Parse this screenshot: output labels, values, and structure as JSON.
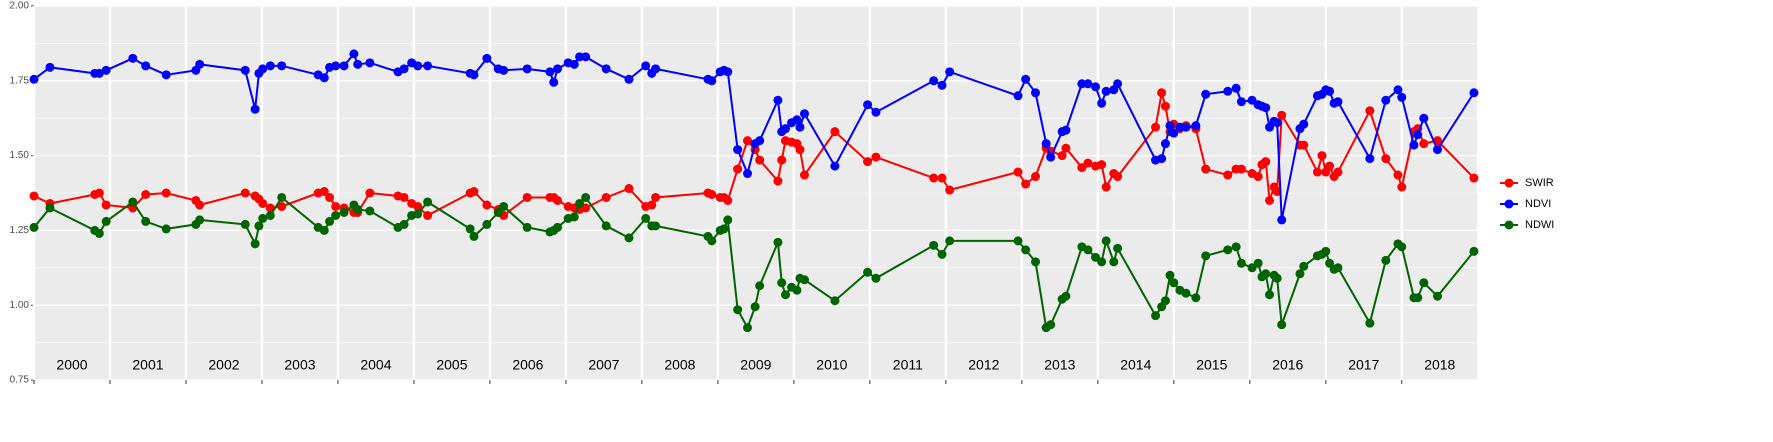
{
  "chart_data": {
    "type": "line",
    "x": [
      2000.0,
      2000.21,
      2000.8,
      2000.86,
      2000.95,
      2001.3,
      2001.47,
      2001.74,
      2002.13,
      2002.18,
      2002.78,
      2002.91,
      2002.96,
      2003.01,
      2003.11,
      2003.26,
      2003.74,
      2003.82,
      2003.89,
      2003.97,
      2004.08,
      2004.21,
      2004.26,
      2004.42,
      2004.79,
      2004.87,
      2004.97,
      2005.05,
      2005.18,
      2005.74,
      2005.79,
      2005.96,
      2006.11,
      2006.18,
      2006.49,
      2006.79,
      2006.84,
      2006.89,
      2007.03,
      2007.11,
      2007.18,
      2007.26,
      2007.53,
      2007.83,
      2008.05,
      2008.13,
      2008.18,
      2008.87,
      2008.92,
      2009.03,
      2009.08,
      2009.13,
      2009.26,
      2009.39,
      2009.49,
      2009.55,
      2009.79,
      2009.84,
      2009.89,
      2009.97,
      2010.04,
      2010.08,
      2010.14,
      2010.54,
      2010.97,
      2011.08,
      2011.84,
      2011.95,
      2012.05,
      2012.95,
      2013.05,
      2013.18,
      2013.32,
      2013.38,
      2013.53,
      2013.58,
      2013.79,
      2013.87,
      2013.97,
      2014.05,
      2014.11,
      2014.21,
      2014.26,
      2014.76,
      2014.84,
      2014.89,
      2014.95,
      2015.0,
      2015.08,
      2015.16,
      2015.29,
      2015.42,
      2015.71,
      2015.82,
      2015.89,
      2016.03,
      2016.11,
      2016.16,
      2016.21,
      2016.26,
      2016.32,
      2016.36,
      2016.42,
      2016.66,
      2016.71,
      2016.89,
      2016.95,
      2017.0,
      2017.05,
      2017.11,
      2017.16,
      2017.58,
      2017.79,
      2017.95,
      2018.0,
      2018.16,
      2018.21,
      2018.29,
      2018.47,
      2018.95
    ],
    "series": [
      {
        "name": "SWIR",
        "color": "#ff0000",
        "values": [
          1.365,
          1.34,
          1.37,
          1.375,
          1.335,
          1.325,
          1.37,
          1.375,
          1.35,
          1.335,
          1.375,
          1.365,
          1.355,
          1.34,
          1.325,
          1.33,
          1.375,
          1.38,
          1.36,
          1.33,
          1.325,
          1.31,
          1.31,
          1.375,
          1.365,
          1.36,
          1.34,
          1.33,
          1.3,
          1.375,
          1.38,
          1.335,
          1.32,
          1.3,
          1.36,
          1.36,
          1.36,
          1.35,
          1.33,
          1.325,
          1.32,
          1.325,
          1.36,
          1.39,
          1.33,
          1.335,
          1.36,
          1.375,
          1.37,
          1.36,
          1.36,
          1.35,
          1.455,
          1.55,
          1.52,
          1.485,
          1.415,
          1.485,
          1.55,
          1.545,
          1.54,
          1.52,
          1.435,
          1.58,
          1.48,
          1.495,
          1.425,
          1.425,
          1.385,
          1.445,
          1.405,
          1.43,
          1.525,
          1.515,
          1.5,
          1.525,
          1.46,
          1.475,
          1.465,
          1.47,
          1.395,
          1.44,
          1.43,
          1.595,
          1.71,
          1.665,
          1.58,
          1.605,
          1.59,
          1.6,
          1.59,
          1.455,
          1.435,
          1.455,
          1.455,
          1.44,
          1.43,
          1.47,
          1.48,
          1.35,
          1.395,
          1.38,
          1.635,
          1.535,
          1.535,
          1.445,
          1.5,
          1.445,
          1.465,
          1.43,
          1.445,
          1.65,
          1.49,
          1.435,
          1.395,
          1.58,
          1.59,
          1.54,
          1.55,
          1.425
        ]
      },
      {
        "name": "NDVI",
        "color": "#0000ff",
        "values": [
          1.755,
          1.795,
          1.775,
          1.775,
          1.785,
          1.825,
          1.8,
          1.77,
          1.785,
          1.805,
          1.785,
          1.655,
          1.775,
          1.79,
          1.8,
          1.8,
          1.77,
          1.76,
          1.795,
          1.8,
          1.8,
          1.84,
          1.805,
          1.81,
          1.78,
          1.79,
          1.81,
          1.8,
          1.8,
          1.775,
          1.77,
          1.825,
          1.79,
          1.785,
          1.79,
          1.78,
          1.745,
          1.79,
          1.81,
          1.805,
          1.83,
          1.83,
          1.79,
          1.755,
          1.8,
          1.775,
          1.79,
          1.755,
          1.75,
          1.78,
          1.785,
          1.78,
          1.52,
          1.44,
          1.54,
          1.55,
          1.685,
          1.58,
          1.59,
          1.61,
          1.62,
          1.595,
          1.64,
          1.465,
          1.67,
          1.645,
          1.75,
          1.735,
          1.78,
          1.7,
          1.755,
          1.71,
          1.54,
          1.495,
          1.58,
          1.585,
          1.74,
          1.74,
          1.73,
          1.675,
          1.715,
          1.72,
          1.74,
          1.485,
          1.49,
          1.54,
          1.6,
          1.575,
          1.595,
          1.595,
          1.6,
          1.705,
          1.715,
          1.725,
          1.68,
          1.685,
          1.67,
          1.665,
          1.66,
          1.595,
          1.615,
          1.61,
          1.285,
          1.59,
          1.605,
          1.7,
          1.705,
          1.72,
          1.715,
          1.675,
          1.68,
          1.49,
          1.685,
          1.72,
          1.695,
          1.535,
          1.57,
          1.625,
          1.52,
          1.71
        ]
      },
      {
        "name": "NDWI",
        "color": "#006400",
        "values": [
          1.26,
          1.325,
          1.25,
          1.24,
          1.28,
          1.345,
          1.28,
          1.255,
          1.27,
          1.285,
          1.27,
          1.205,
          1.265,
          1.29,
          1.3,
          1.36,
          1.26,
          1.25,
          1.28,
          1.3,
          1.31,
          1.335,
          1.32,
          1.315,
          1.26,
          1.27,
          1.3,
          1.305,
          1.345,
          1.255,
          1.23,
          1.27,
          1.31,
          1.33,
          1.26,
          1.245,
          1.25,
          1.26,
          1.29,
          1.295,
          1.34,
          1.36,
          1.265,
          1.225,
          1.29,
          1.265,
          1.265,
          1.23,
          1.215,
          1.25,
          1.255,
          1.285,
          0.985,
          0.925,
          0.995,
          1.065,
          1.21,
          1.075,
          1.035,
          1.06,
          1.05,
          1.09,
          1.085,
          1.015,
          1.11,
          1.09,
          1.2,
          1.17,
          1.215,
          1.215,
          1.185,
          1.145,
          0.925,
          0.935,
          1.02,
          1.03,
          1.195,
          1.185,
          1.16,
          1.145,
          1.215,
          1.145,
          1.19,
          0.965,
          0.995,
          1.015,
          1.1,
          1.075,
          1.05,
          1.04,
          1.025,
          1.165,
          1.185,
          1.195,
          1.14,
          1.125,
          1.14,
          1.095,
          1.105,
          1.035,
          1.1,
          1.09,
          0.935,
          1.105,
          1.13,
          1.165,
          1.17,
          1.18,
          1.14,
          1.12,
          1.125,
          0.94,
          1.15,
          1.205,
          1.195,
          1.025,
          1.025,
          1.075,
          1.03,
          1.18
        ]
      }
    ],
    "xlim": [
      2000,
      2018.99
    ],
    "xticks": [
      2000,
      2001,
      2002,
      2003,
      2004,
      2005,
      2006,
      2007,
      2008,
      2009,
      2010,
      2011,
      2012,
      2013,
      2014,
      2015,
      2016,
      2017,
      2018
    ],
    "ylim": [
      0.75,
      2.0
    ],
    "yticks": [
      {
        "value": 0.75,
        "label": "0.75"
      },
      {
        "value": 1.0,
        "label": "1.00"
      },
      {
        "value": 1.25,
        "label": "1.25"
      },
      {
        "value": 1.5,
        "label": "1.50"
      },
      {
        "value": 1.75,
        "label": "1.75"
      },
      {
        "value": 2.0,
        "label": "2.00"
      }
    ],
    "grid": true,
    "legend": "right"
  }
}
